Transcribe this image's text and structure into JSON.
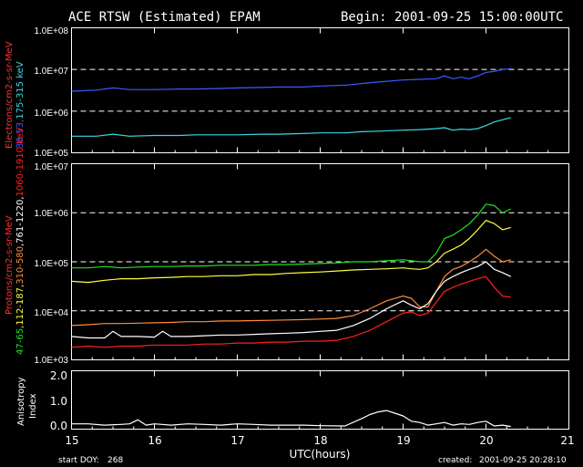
{
  "title": "ACE RTSW (Estimated) EPAM",
  "begin_label": "Begin: 2001-09-25 15:00:00UTC",
  "x_label": "UTC(hours)",
  "start_doy_label": "start DOY:",
  "start_doy_value": "268",
  "created_label": "created:",
  "created_value": "2001-09-25 20:28:10",
  "x_ticks": [
    "15",
    "16",
    "17",
    "18",
    "19",
    "20",
    "21"
  ],
  "panels": {
    "electrons": {
      "ylabel_prefix": "Electrons/cm2-s-sr-MeV",
      "ylabel_parts": [
        {
          "text": "38-53",
          "color": "#3a5cff"
        },
        {
          "text": ",",
          "color": "#ff2020"
        },
        {
          "text": "175-315 keV",
          "color": "#3ad8e6"
        }
      ],
      "y_ticks": [
        "1.0E+08",
        "1.0E+07",
        "1.0E+06",
        "1.0E+05"
      ]
    },
    "protons": {
      "ylabel_prefix": "Protons/cm2-s-sr-MeV",
      "ylabel_parts": [
        {
          "text": "47-65",
          "color": "#22e022"
        },
        {
          "text": ",112-187,",
          "color": "#ffff40"
        },
        {
          "text": "310-580",
          "color": "#ff8c3a"
        },
        {
          "text": ",761-1220,",
          "color": "#ffffff"
        },
        {
          "text": "1060-1910 keV",
          "color": "#ff2020"
        }
      ],
      "y_ticks": [
        "1.0E+07",
        "1.0E+06",
        "1.0E+05",
        "1.0E+04",
        "1.0E+03"
      ]
    },
    "anisotropy": {
      "ylabel_lines": [
        "Anisotropy",
        "Index"
      ],
      "y_ticks": [
        "2.0",
        "1.0",
        "0.0"
      ]
    }
  },
  "chart_data": [
    {
      "type": "line",
      "panel": "electrons",
      "log_scale": true,
      "xlim": [
        15,
        21
      ],
      "ylim": [
        100000,
        100000000
      ],
      "dashed_reference_lines": [
        10000000,
        1000000
      ],
      "series": [
        {
          "color": "#3a5cff",
          "x": [
            15.0,
            15.3,
            15.5,
            15.7,
            16.0,
            16.3,
            16.5,
            16.8,
            17.0,
            17.3,
            17.5,
            17.8,
            18.0,
            18.3,
            18.5,
            18.7,
            19.0,
            19.2,
            19.4,
            19.5,
            19.6,
            19.7,
            19.8,
            19.9,
            20.0,
            20.1,
            20.2,
            20.3
          ],
          "y": [
            3000000,
            3200000,
            3600000,
            3300000,
            3300000,
            3400000,
            3400000,
            3500000,
            3600000,
            3700000,
            3800000,
            3800000,
            4000000,
            4200000,
            4600000,
            5000000,
            5600000,
            5800000,
            6000000,
            7000000,
            6000000,
            6500000,
            6000000,
            7000000,
            8500000,
            9000000,
            10000000,
            10500000
          ]
        },
        {
          "color": "#3ad8e6",
          "x": [
            15.0,
            15.3,
            15.5,
            15.7,
            16.0,
            16.3,
            16.5,
            16.8,
            17.0,
            17.3,
            17.5,
            17.8,
            18.0,
            18.3,
            18.5,
            18.7,
            19.0,
            19.2,
            19.4,
            19.5,
            19.6,
            19.7,
            19.8,
            19.9,
            20.0,
            20.1,
            20.2,
            20.3
          ],
          "y": [
            250000,
            250000,
            280000,
            250000,
            260000,
            260000,
            270000,
            270000,
            270000,
            280000,
            280000,
            290000,
            300000,
            300000,
            320000,
            330000,
            350000,
            360000,
            380000,
            400000,
            350000,
            370000,
            360000,
            380000,
            450000,
            550000,
            620000,
            700000
          ]
        }
      ]
    },
    {
      "type": "line",
      "panel": "protons",
      "log_scale": true,
      "xlim": [
        15,
        21
      ],
      "ylim": [
        1000,
        10000000
      ],
      "dashed_reference_lines": [
        1000000,
        100000,
        10000
      ],
      "series": [
        {
          "color": "#22e022",
          "x": [
            15.0,
            15.2,
            15.4,
            15.6,
            15.8,
            16.0,
            16.2,
            16.4,
            16.6,
            16.8,
            17.0,
            17.2,
            17.4,
            17.6,
            17.8,
            18.0,
            18.2,
            18.4,
            18.6,
            18.8,
            19.0,
            19.1,
            19.2,
            19.3,
            19.4,
            19.5,
            19.6,
            19.7,
            19.8,
            19.9,
            20.0,
            20.1,
            20.2,
            20.3
          ],
          "y": [
            75000,
            75000,
            80000,
            75000,
            78000,
            80000,
            80000,
            82000,
            82000,
            85000,
            85000,
            85000,
            88000,
            88000,
            90000,
            92000,
            95000,
            100000,
            100000,
            105000,
            110000,
            105000,
            100000,
            100000,
            150000,
            300000,
            350000,
            450000,
            600000,
            900000,
            1500000,
            1400000,
            1000000,
            1200000
          ]
        },
        {
          "color": "#ffff40",
          "x": [
            15.0,
            15.2,
            15.4,
            15.6,
            15.8,
            16.0,
            16.2,
            16.4,
            16.6,
            16.8,
            17.0,
            17.2,
            17.4,
            17.6,
            17.8,
            18.0,
            18.2,
            18.4,
            18.6,
            18.8,
            19.0,
            19.1,
            19.2,
            19.3,
            19.4,
            19.5,
            19.6,
            19.7,
            19.8,
            19.9,
            20.0,
            20.1,
            20.2,
            20.3
          ],
          "y": [
            40000,
            38000,
            42000,
            45000,
            45000,
            47000,
            48000,
            50000,
            50000,
            52000,
            52000,
            55000,
            55000,
            58000,
            60000,
            62000,
            65000,
            68000,
            70000,
            72000,
            75000,
            72000,
            70000,
            75000,
            100000,
            150000,
            180000,
            220000,
            300000,
            450000,
            700000,
            600000,
            450000,
            500000
          ]
        },
        {
          "color": "#ff8c3a",
          "x": [
            15.0,
            15.2,
            15.4,
            15.6,
            15.8,
            16.0,
            16.2,
            16.4,
            16.6,
            16.8,
            17.0,
            17.2,
            17.4,
            17.6,
            17.8,
            18.0,
            18.2,
            18.4,
            18.6,
            18.8,
            19.0,
            19.1,
            19.2,
            19.3,
            19.4,
            19.5,
            19.6,
            19.7,
            19.8,
            19.9,
            20.0,
            20.1,
            20.2,
            20.3
          ],
          "y": [
            5000,
            5200,
            5500,
            5500,
            5600,
            5700,
            5800,
            6000,
            6000,
            6200,
            6200,
            6300,
            6400,
            6500,
            6600,
            6800,
            7000,
            8000,
            11000,
            16000,
            20000,
            18000,
            12000,
            12000,
            25000,
            50000,
            70000,
            80000,
            100000,
            130000,
            180000,
            130000,
            100000,
            110000
          ]
        },
        {
          "color": "#ffffff",
          "x": [
            15.0,
            15.2,
            15.4,
            15.5,
            15.6,
            15.8,
            16.0,
            16.1,
            16.2,
            16.4,
            16.6,
            16.8,
            17.0,
            17.2,
            17.4,
            17.6,
            17.8,
            18.0,
            18.2,
            18.4,
            18.6,
            18.8,
            19.0,
            19.1,
            19.2,
            19.3,
            19.4,
            19.5,
            19.6,
            19.7,
            19.8,
            19.9,
            20.0,
            20.1,
            20.2,
            20.3
          ],
          "y": [
            3000,
            2800,
            2800,
            3800,
            3000,
            3000,
            2900,
            3800,
            3000,
            3000,
            3100,
            3200,
            3200,
            3300,
            3400,
            3500,
            3600,
            3800,
            4000,
            5000,
            7000,
            11000,
            16000,
            13000,
            11000,
            14000,
            25000,
            40000,
            50000,
            60000,
            70000,
            80000,
            100000,
            70000,
            60000,
            50000
          ]
        },
        {
          "color": "#ff2020",
          "x": [
            15.0,
            15.2,
            15.4,
            15.6,
            15.8,
            16.0,
            16.2,
            16.4,
            16.6,
            16.8,
            17.0,
            17.2,
            17.4,
            17.6,
            17.8,
            18.0,
            18.2,
            18.4,
            18.6,
            18.8,
            19.0,
            19.1,
            19.2,
            19.3,
            19.4,
            19.5,
            19.6,
            19.7,
            19.8,
            19.9,
            20.0,
            20.1,
            20.2,
            20.3
          ],
          "y": [
            1800,
            1900,
            1800,
            1900,
            1900,
            2000,
            2000,
            2000,
            2100,
            2100,
            2200,
            2200,
            2300,
            2300,
            2400,
            2400,
            2500,
            3000,
            4000,
            6000,
            9000,
            9500,
            8000,
            9000,
            15000,
            25000,
            30000,
            35000,
            40000,
            45000,
            50000,
            30000,
            20000,
            19000
          ]
        }
      ]
    },
    {
      "type": "line",
      "panel": "anisotropy",
      "xlim": [
        15,
        21
      ],
      "ylim": [
        -0.1,
        2.1
      ],
      "series": [
        {
          "color": "#ffffff",
          "x": [
            15.0,
            15.2,
            15.4,
            15.6,
            15.7,
            15.8,
            15.9,
            16.0,
            16.2,
            16.4,
            16.6,
            16.8,
            17.0,
            17.2,
            17.4,
            17.6,
            17.8,
            18.0,
            18.3,
            18.5,
            18.6,
            18.7,
            18.8,
            18.9,
            19.0,
            19.1,
            19.2,
            19.3,
            19.4,
            19.5,
            19.6,
            19.7,
            19.8,
            19.9,
            20.0,
            20.1,
            20.2,
            20.3
          ],
          "y": [
            0.1,
            0.1,
            0.05,
            0.08,
            0.1,
            0.25,
            0.05,
            0.1,
            0.05,
            0.1,
            0.08,
            0.05,
            0.1,
            0.08,
            0.05,
            0.05,
            0.05,
            0.03,
            0.02,
            0.3,
            0.45,
            0.55,
            0.6,
            0.5,
            0.4,
            0.2,
            0.15,
            0.05,
            0.1,
            0.15,
            0.05,
            0.1,
            0.08,
            0.15,
            0.2,
            0.02,
            0.05,
            0.0
          ]
        }
      ]
    }
  ]
}
